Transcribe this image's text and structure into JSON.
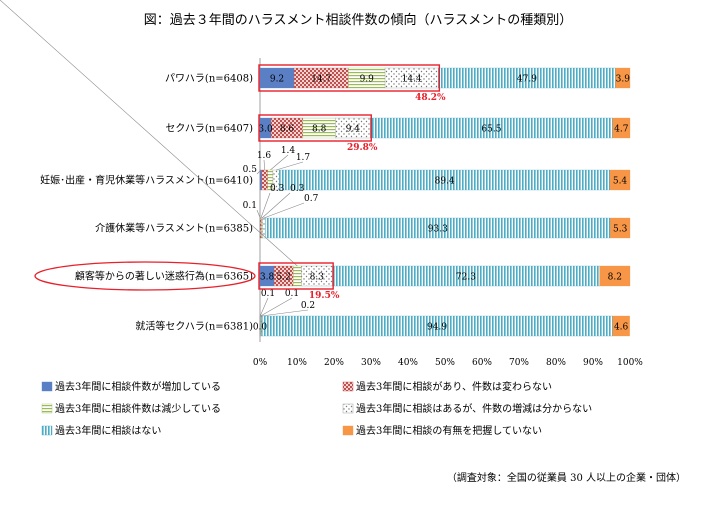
{
  "chart_data": {
    "type": "bar",
    "orientation": "horizontal",
    "stacked": true,
    "title": "図：過去３年間のハラスメント相談件数の傾向（ハラスメントの種類別）",
    "categories": [
      "パワハラ(n=6408)",
      "セクハラ(n=6407)",
      "妊娠･出産・育児休業等ハラスメント(n=6410)",
      "介護休業等ハラスメント(n=6385)",
      "顧客等からの著しい迷惑行為(n=6365)",
      "就活等セクハラ(n=6381)"
    ],
    "series": [
      {
        "name": "過去3年間に相談件数が増加している",
        "color": "#5b7fc4",
        "pattern": "solid",
        "values": [
          9.2,
          3.0,
          0.5,
          0.1,
          3.8,
          0.0
        ]
      },
      {
        "name": "過去3年間に相談があり、件数は変わらない",
        "color": "#c0504d",
        "pattern": "checker",
        "values": [
          14.7,
          8.6,
          1.6,
          0.3,
          5.2,
          0.1
        ]
      },
      {
        "name": "過去3年間に相談件数は減少している",
        "color": "#9bbb59",
        "pattern": "hlines",
        "values": [
          9.9,
          8.8,
          1.4,
          0.3,
          2.2,
          0.1
        ]
      },
      {
        "name": "過去3年間に相談はあるが、件数の増減は分からない",
        "color": "#8a8a8a",
        "pattern": "dots",
        "values": [
          14.4,
          9.4,
          1.7,
          0.7,
          8.3,
          0.2
        ]
      },
      {
        "name": "過去3年間に相談はない",
        "color": "#4bacc6",
        "pattern": "vlines",
        "values": [
          47.9,
          65.5,
          89.4,
          93.3,
          72.3,
          94.9
        ]
      },
      {
        "name": "過去3年間に相談の有無を把握していない",
        "color": "#f79646",
        "pattern": "solid",
        "values": [
          3.9,
          4.7,
          5.4,
          5.3,
          8.2,
          4.6
        ]
      }
    ],
    "highlight_totals": [
      {
        "category_index": 0,
        "value": "48.2%"
      },
      {
        "category_index": 1,
        "value": "29.8%"
      },
      {
        "category_index": 4,
        "value": "19.5%"
      }
    ],
    "highlighted_category_index": 4,
    "xlim": [
      0,
      100
    ],
    "x_ticks": [
      "0%",
      "10%",
      "20%",
      "30%",
      "40%",
      "50%",
      "60%",
      "70%",
      "80%",
      "90%",
      "100%"
    ],
    "grid": false,
    "legend_placement": "bottom",
    "note": "（調査対象：全国の従業員 30 人以上の企業・団体）",
    "highlight_color": "#e8202a"
  }
}
